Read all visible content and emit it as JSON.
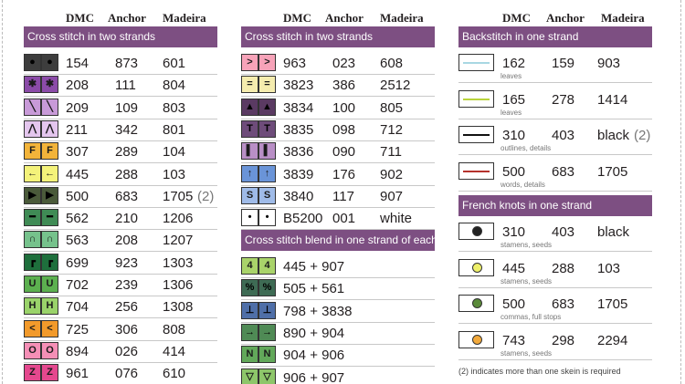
{
  "headers": {
    "dmc": "DMC",
    "anchor": "Anchor",
    "madeira": "Madeira"
  },
  "col1": {
    "section_title": "Cross stitch in two strands",
    "rows": [
      {
        "sym": "●",
        "bg": "#3d3d3d",
        "fg": "#000000",
        "dmc": "154",
        "anchor": "873",
        "madeira": "601",
        "extra": ""
      },
      {
        "sym": "✱",
        "bg": "#8b4ba8",
        "fg": "#1a1a1a",
        "dmc": "208",
        "anchor": "111",
        "madeira": "804",
        "extra": ""
      },
      {
        "sym": "╲",
        "bg": "#c89ad8",
        "fg": "#1a1a1a",
        "dmc": "209",
        "anchor": "109",
        "madeira": "803",
        "extra": ""
      },
      {
        "sym": "⋀",
        "bg": "#e4c6ee",
        "fg": "#1a1a1a",
        "dmc": "211",
        "anchor": "342",
        "madeira": "801",
        "extra": ""
      },
      {
        "sym": "F",
        "bg": "#f3b43a",
        "fg": "#1a1a1a",
        "dmc": "307",
        "anchor": "289",
        "madeira": "104",
        "extra": ""
      },
      {
        "sym": "←",
        "bg": "#f4f27a",
        "fg": "#1a1a1a",
        "dmc": "445",
        "anchor": "288",
        "madeira": "103",
        "extra": ""
      },
      {
        "sym": "▶",
        "bg": "#4a5a3a",
        "fg": "#000000",
        "dmc": "500",
        "anchor": "683",
        "madeira": "1705",
        "extra": "(2)"
      },
      {
        "sym": "━",
        "bg": "#3f8b55",
        "fg": "#000000",
        "dmc": "562",
        "anchor": "210",
        "madeira": "1206",
        "extra": ""
      },
      {
        "sym": "∩",
        "bg": "#76c28c",
        "fg": "#1a1a1a",
        "dmc": "563",
        "anchor": "208",
        "madeira": "1207",
        "extra": ""
      },
      {
        "sym": "┏",
        "bg": "#1e6f3c",
        "fg": "#000000",
        "dmc": "699",
        "anchor": "923",
        "madeira": "1303",
        "extra": ""
      },
      {
        "sym": "U",
        "bg": "#5cb04f",
        "fg": "#1a1a1a",
        "dmc": "702",
        "anchor": "239",
        "madeira": "1306",
        "extra": ""
      },
      {
        "sym": "H",
        "bg": "#9ad36a",
        "fg": "#1a1a1a",
        "dmc": "704",
        "anchor": "256",
        "madeira": "1308",
        "extra": ""
      },
      {
        "sym": "<",
        "bg": "#f29a2b",
        "fg": "#1a1a1a",
        "dmc": "725",
        "anchor": "306",
        "madeira": "808",
        "extra": ""
      },
      {
        "sym": "O",
        "bg": "#f58fb6",
        "fg": "#1a1a1a",
        "dmc": "894",
        "anchor": "026",
        "madeira": "414",
        "extra": ""
      },
      {
        "sym": "Z",
        "bg": "#e5488e",
        "fg": "#1a1a1a",
        "dmc": "961",
        "anchor": "076",
        "madeira": "610",
        "extra": ""
      }
    ]
  },
  "col2": {
    "section_title": "Cross stitch in two strands",
    "rows": [
      {
        "sym": ">",
        "bg": "#f7a3b9",
        "fg": "#1a1a1a",
        "dmc": "963",
        "anchor": "023",
        "madeira": "608"
      },
      {
        "sym": "=",
        "bg": "#f5ecae",
        "fg": "#1a1a1a",
        "dmc": "3823",
        "anchor": "386",
        "madeira": "2512"
      },
      {
        "sym": "▲",
        "bg": "#5a3a62",
        "fg": "#000000",
        "dmc": "3834",
        "anchor": "100",
        "madeira": "805"
      },
      {
        "sym": "T",
        "bg": "#6e4c7a",
        "fg": "#000000",
        "dmc": "3835",
        "anchor": "098",
        "madeira": "712"
      },
      {
        "sym": "▌",
        "bg": "#b98fc6",
        "fg": "#1a1a1a",
        "dmc": "3836",
        "anchor": "090",
        "madeira": "711"
      },
      {
        "sym": "↑",
        "bg": "#6a94d8",
        "fg": "#1a1a1a",
        "dmc": "3839",
        "anchor": "176",
        "madeira": "902"
      },
      {
        "sym": "S",
        "bg": "#9fbbe8",
        "fg": "#1a1a1a",
        "dmc": "3840",
        "anchor": "117",
        "madeira": "907"
      },
      {
        "sym": "•",
        "bg": "#ffffff",
        "fg": "#000000",
        "dmc": "B5200",
        "anchor": "001",
        "madeira": "white"
      }
    ],
    "blend_title": "Cross stitch blend in one strand of each",
    "blend_rows": [
      {
        "sym": "4",
        "bg": "#a9d36a",
        "fg": "#1a1a1a",
        "combo": "445 + 907"
      },
      {
        "sym": "%",
        "bg": "#3e6b54",
        "fg": "#000000",
        "combo": "505 + 561"
      },
      {
        "sym": "⊥",
        "bg": "#4f6fa8",
        "fg": "#000000",
        "combo": "798 + 3838"
      },
      {
        "sym": "→",
        "bg": "#4f8a55",
        "fg": "#000000",
        "combo": "890 + 904"
      },
      {
        "sym": "N",
        "bg": "#62a85a",
        "fg": "#1a1a1a",
        "combo": "904 + 906"
      },
      {
        "sym": "▽",
        "bg": "#8dc66a",
        "fg": "#1a1a1a",
        "combo": "906 + 907"
      }
    ]
  },
  "col3": {
    "back_title": "Backstitch in one strand",
    "back_rows": [
      {
        "line_color": "#a8d7e3",
        "dmc": "162",
        "anchor": "159",
        "madeira": "903",
        "extra": "",
        "sub": "leaves"
      },
      {
        "line_color": "#b9d43b",
        "dmc": "165",
        "anchor": "278",
        "madeira": "1414",
        "extra": "",
        "sub": "leaves"
      },
      {
        "line_color": "#111111",
        "dmc": "310",
        "anchor": "403",
        "madeira": "black",
        "extra": "(2)",
        "sub": "outlines, details"
      },
      {
        "line_color": "#b5322c",
        "dmc": "500",
        "anchor": "683",
        "madeira": "1705",
        "extra": "",
        "sub": "words, details"
      }
    ],
    "french_title": "French knots in one strand",
    "french_rows": [
      {
        "dot_color": "#222222",
        "dmc": "310",
        "anchor": "403",
        "madeira": "black",
        "sub": "stamens, seeds"
      },
      {
        "dot_color": "#eef06a",
        "dmc": "445",
        "anchor": "288",
        "madeira": "103",
        "sub": "stamens, seeds"
      },
      {
        "dot_color": "#5a8a3a",
        "dmc": "500",
        "anchor": "683",
        "madeira": "1705",
        "sub": "commas, full stops"
      },
      {
        "dot_color": "#f2a93b",
        "dmc": "743",
        "anchor": "298",
        "madeira": "2294",
        "sub": "stamens, seeds"
      }
    ],
    "note": "(2) indicates more than one skein is required"
  }
}
